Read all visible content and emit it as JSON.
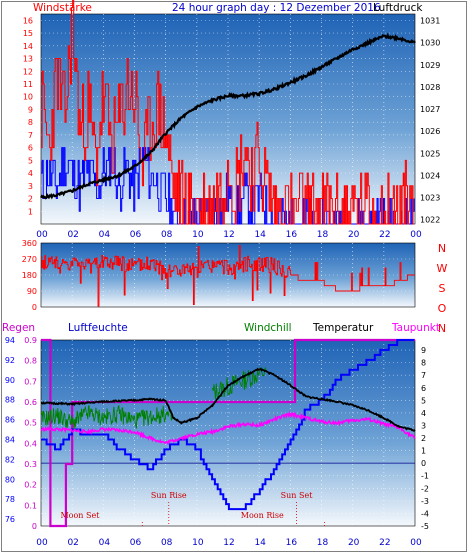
{
  "top": {
    "title": "24 hour graph day : 12 Dezember 2016",
    "left_label": "Windstärke",
    "right_label": "Luftdruck",
    "y_left_ticks": [
      "16",
      "15",
      "14",
      "13",
      "12",
      "11",
      "10",
      "9",
      "8",
      "7",
      "6",
      "5",
      "4",
      "3",
      "2",
      "1"
    ],
    "y_right_ticks": [
      "1031",
      "1030",
      "1029",
      "1028",
      "1027",
      "1026",
      "1025",
      "1024",
      "1023",
      "1022"
    ],
    "x_ticks": [
      "00",
      "02",
      "04",
      "06",
      "08",
      "10",
      "12",
      "14",
      "16",
      "18",
      "20",
      "22",
      "00"
    ]
  },
  "middle": {
    "y_ticks": [
      "360",
      "270",
      "180",
      "90",
      "0"
    ],
    "compass": [
      "N",
      "W",
      "S",
      "O",
      "N"
    ]
  },
  "bottom": {
    "labels": {
      "rain": "Regen",
      "humidity": "Luftfeuchte",
      "windchill": "Windchill",
      "temperature": "Temperatur",
      "dewpoint": "Taupunkt"
    },
    "humidity_ticks": [
      "94",
      "92",
      "90",
      "88",
      "86",
      "84",
      "82",
      "80",
      "78",
      "76"
    ],
    "rain_ticks": [
      "0.9",
      "0.8",
      "0.7",
      "0.6",
      "0.5",
      "0.4",
      "0.3",
      "0.2",
      "0.1",
      "0"
    ],
    "temp_ticks": [
      "9",
      "8",
      "7",
      "6",
      "5",
      "4",
      "3",
      "2",
      "1",
      "0",
      "-1",
      "-2",
      "-3",
      "-4",
      "-5"
    ],
    "x_ticks": [
      "00",
      "02",
      "04",
      "06",
      "08",
      "10",
      "12",
      "14",
      "16",
      "18",
      "20",
      "22",
      "00"
    ],
    "astro": {
      "sun_rise": "Sun Rise",
      "sun_set": "Sun Set",
      "moon_set": "Moon Set",
      "moon_rise": "Moon Rise"
    }
  },
  "colors": {
    "title_blue": "#0000cc",
    "wind_red": "#ff0000",
    "gust_blue": "#0000ff",
    "pressure_black": "#000000",
    "windchill_green": "#008000",
    "dewpoint_magenta": "#ff00ff",
    "humidity_blue": "#0000ff",
    "astro_red": "#cc0000",
    "panel_top": "#1a5fb4",
    "panel_bottom": "#e8f2fb"
  },
  "chart_data": [
    {
      "type": "line",
      "title": "24 hour graph day : 12 Dezember 2016",
      "x_range_hours": [
        0,
        24
      ],
      "ylim_wind": [
        0,
        16.5
      ],
      "ylim_pressure": [
        1021.8,
        1031.3
      ],
      "series": [
        {
          "name": "Luftdruck",
          "axis": "right",
          "x": [
            0,
            1,
            2,
            3,
            4,
            5,
            6,
            7,
            8,
            9,
            10,
            11,
            12,
            13,
            14,
            15,
            16,
            17,
            18,
            19,
            20,
            21,
            22,
            23,
            24
          ],
          "values": [
            1023.0,
            1023.1,
            1023.3,
            1023.6,
            1023.8,
            1024.0,
            1024.4,
            1025.0,
            1025.9,
            1026.6,
            1027.1,
            1027.4,
            1027.6,
            1027.6,
            1027.7,
            1027.9,
            1028.2,
            1028.5,
            1028.9,
            1029.3,
            1029.7,
            1030.0,
            1030.3,
            1030.2,
            1030.0
          ]
        },
        {
          "name": "Windstärke",
          "axis": "left",
          "x": [
            0,
            0.5,
            1,
            1.5,
            2,
            2.5,
            3,
            3.5,
            4,
            4.5,
            5,
            5.5,
            6,
            6.5,
            7,
            7.5,
            8,
            8.5,
            9,
            9.5,
            10,
            10.5,
            11,
            11.5,
            12,
            12.5,
            13,
            13.5,
            14,
            14.5,
            15,
            16,
            17,
            18,
            19,
            20,
            21,
            22,
            23,
            24
          ],
          "values": [
            9,
            6,
            12,
            8,
            16,
            7,
            9,
            5,
            10,
            6,
            8,
            11,
            10,
            4,
            8,
            9,
            7,
            3,
            2,
            1,
            2,
            1,
            2,
            2,
            5,
            3,
            6,
            4,
            5,
            3,
            1,
            1,
            1,
            1,
            1,
            1,
            1,
            1,
            1,
            2
          ]
        },
        {
          "name": "",
          "axis": "left",
          "x": [
            0,
            0.5,
            1,
            1.5,
            2,
            2.5,
            3,
            3.5,
            4,
            4.5,
            5,
            5.5,
            6,
            6.5,
            7,
            7.5,
            8,
            8.5,
            9,
            9.5,
            10,
            10.5,
            11,
            11.5,
            12,
            12.5,
            13,
            13.5,
            14,
            14.5,
            15,
            16,
            17,
            18,
            19,
            20,
            21,
            22,
            23,
            24
          ],
          "values": [
            3,
            4,
            3,
            5,
            4,
            3,
            4,
            3,
            4,
            5,
            3,
            4,
            3,
            5,
            4,
            3,
            2,
            1,
            0,
            0,
            1,
            0,
            1,
            1,
            2,
            1,
            2,
            1,
            2,
            1,
            0,
            0,
            0,
            0,
            0,
            0,
            0,
            0,
            0,
            0
          ]
        }
      ]
    },
    {
      "type": "line",
      "ylim": [
        0,
        360
      ],
      "series": [
        {
          "name": "",
          "x": [
            0,
            1,
            2,
            3,
            4,
            5,
            6,
            7,
            8,
            9,
            10,
            11,
            12,
            13,
            14,
            15,
            16,
            17,
            18,
            19,
            20,
            21,
            22,
            23,
            24
          ],
          "values": [
            250,
            260,
            240,
            255,
            245,
            250,
            230,
            240,
            220,
            200,
            210,
            230,
            220,
            240,
            250,
            230,
            180,
            150,
            140,
            100,
            90,
            120,
            110,
            150,
            180
          ]
        }
      ]
    },
    {
      "type": "line",
      "x_range_hours": [
        0,
        24
      ],
      "ylim_temp": [
        -5,
        9.8
      ],
      "ylim_humidity": [
        75.3,
        94
      ],
      "ylim_rain": [
        0,
        0.9
      ],
      "series": [
        {
          "name": "Temperatur",
          "axis": "temp",
          "x": [
            0,
            2,
            4,
            6,
            7,
            8,
            8.5,
            9,
            10,
            11,
            12,
            13,
            14,
            15,
            16,
            17,
            18,
            19,
            20,
            21,
            22,
            23,
            24
          ],
          "values": [
            4.8,
            4.7,
            4.9,
            5.0,
            5.1,
            5.0,
            3.6,
            3.2,
            3.6,
            4.6,
            6.2,
            6.9,
            7.5,
            7.0,
            6.2,
            5.3,
            5.1,
            4.9,
            4.6,
            4.2,
            3.6,
            2.9,
            2.6
          ]
        },
        {
          "name": "Taupunkt",
          "axis": "temp",
          "x": [
            0,
            1,
            2,
            3,
            4,
            5,
            6,
            7,
            8,
            9,
            10,
            11,
            12,
            13,
            14,
            15,
            16,
            17,
            18,
            19,
            20,
            21,
            22,
            23,
            24
          ],
          "values": [
            2.7,
            2.7,
            2.6,
            2.5,
            2.7,
            2.6,
            2.5,
            2.0,
            1.6,
            2.0,
            2.3,
            2.5,
            2.9,
            3.1,
            3.0,
            3.5,
            3.9,
            3.6,
            3.3,
            3.2,
            3.4,
            3.5,
            3.1,
            2.8,
            2.0
          ]
        },
        {
          "name": "Windchill",
          "axis": "temp",
          "x": [
            0,
            1,
            2,
            3,
            4,
            5,
            6,
            7,
            8,
            8.5
          ],
          "values": [
            3.5,
            3.8,
            3.2,
            4.0,
            3.6,
            3.9,
            3.4,
            3.7,
            3.9,
            3.5
          ]
        },
        {
          "name": "Luftfeuchte",
          "axis": "humidity",
          "x": [
            0,
            1,
            2,
            3,
            4,
            5,
            6,
            7,
            8,
            9,
            10,
            11,
            12,
            13,
            14,
            15,
            16,
            17,
            18,
            19,
            20,
            21,
            22,
            23,
            24
          ],
          "values": [
            84,
            83,
            85,
            84.5,
            84.5,
            83,
            82,
            81,
            83,
            84,
            83,
            80,
            77,
            77,
            79,
            81,
            84,
            87,
            88,
            90,
            91,
            92,
            93,
            94,
            94
          ]
        },
        {
          "name": "Regen",
          "axis": "rain",
          "x": [
            0,
            0.1,
            0.6,
            1.6,
            2.0,
            8.5,
            16,
            16.3,
            24
          ],
          "values": [
            0.9,
            0.9,
            0.0,
            0.3,
            0.6,
            0.6,
            0.6,
            0.9,
            0.9
          ]
        }
      ]
    }
  ]
}
